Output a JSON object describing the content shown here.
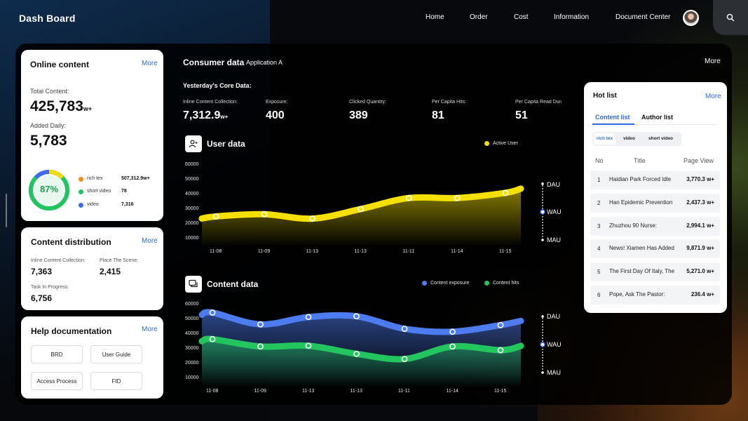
{
  "header": {
    "brand": "Dash Board",
    "nav": [
      "Home",
      "Order",
      "Cost",
      "Information",
      "Document Center"
    ]
  },
  "online_content": {
    "title": "Online content",
    "more": "More",
    "total_label": "Total Content:",
    "total_value": "425,783",
    "total_unit": "w+",
    "daily_label": "Added Daily:",
    "daily_value": "5,783",
    "ring_percent": "87%",
    "ring_fraction": 0.87,
    "legend": [
      {
        "label": "rich tex",
        "value": "507,312.9w+",
        "color": "#f28c1e"
      },
      {
        "label": "short video",
        "value": "78",
        "color": "#22c55e"
      },
      {
        "label": "video",
        "value": "7,316",
        "color": "#3b6cf0"
      }
    ]
  },
  "distribution": {
    "title": "Content distribution",
    "more": "More",
    "items": [
      {
        "label": "Inline Content Collection:",
        "value": "7,363"
      },
      {
        "label": "Place The Scene:",
        "value": "2,415"
      },
      {
        "label": "Task In Progress:",
        "value": "6,756"
      }
    ]
  },
  "help": {
    "title": "Help documentation",
    "more": "More",
    "buttons": [
      "BRD",
      "User Guide",
      "Access Process",
      "FID"
    ]
  },
  "consumer": {
    "title": "Consumer data",
    "app": "Application A",
    "more": "More",
    "core_title": "Yesterday's Core Data:",
    "kpis": [
      {
        "label": "Inline Content Collection:",
        "value": "7,312.9",
        "unit": "w+"
      },
      {
        "label": "Exposure:",
        "value": "400",
        "unit": ""
      },
      {
        "label": "Clicked Quantity:",
        "value": "389",
        "unit": ""
      },
      {
        "label": "Per Capita Hits:",
        "value": "81",
        "unit": ""
      },
      {
        "label": "Per Capita Read Dura",
        "value": "51",
        "unit": ""
      }
    ],
    "scale_labels": [
      "DAU",
      "WAU",
      "MAU"
    ]
  },
  "chart_data": [
    {
      "type": "area",
      "title": "User data",
      "categories": [
        "11-08",
        "11-09",
        "11-13",
        "11-13",
        "11-11",
        "11-14",
        "11-15"
      ],
      "ylim": [
        10000,
        60000
      ],
      "yticks": [
        "60000",
        "50000",
        "40000",
        "30000",
        "20000",
        "10000"
      ],
      "series": [
        {
          "name": "Active User",
          "color": "#f5e000",
          "values": [
            25500,
            27000,
            24000,
            30500,
            38000,
            38000,
            41500
          ]
        }
      ],
      "legend_position": "top-right"
    },
    {
      "type": "area",
      "title": "Content data",
      "categories": [
        "11-08",
        "11-09",
        "11-13",
        "11-13",
        "11-11",
        "11-14",
        "11-15"
      ],
      "ylim": [
        10000,
        60000
      ],
      "yticks": [
        "60000",
        "50000",
        "40000",
        "30000",
        "20000",
        "10000"
      ],
      "series": [
        {
          "name": "Content exposure",
          "color": "#4d7cf0",
          "values": [
            55000,
            47000,
            52000,
            52500,
            44000,
            42000,
            46500
          ]
        },
        {
          "name": "Content hits",
          "color": "#22c55e",
          "values": [
            37000,
            32000,
            32500,
            27000,
            23500,
            32000,
            29500
          ]
        }
      ],
      "legend_position": "top-right"
    }
  ],
  "hotlist": {
    "title": "Hot list",
    "more": "More",
    "tabs": [
      "Content list",
      "Author list"
    ],
    "pills": [
      "rich tex",
      "video",
      "short video"
    ],
    "headers": [
      "No",
      "Title",
      "Page View"
    ],
    "rows": [
      {
        "no": "1",
        "title": "Haidian Park Forced Idle",
        "pv": "3,770.3 w+"
      },
      {
        "no": "2",
        "title": "Han Epidemic Prevention",
        "pv": "2,437.3 w+"
      },
      {
        "no": "3",
        "title": "Zhuzhou 90 Nurse:",
        "pv": "2,994.1 w+"
      },
      {
        "no": "4",
        "title": "News! Xiamen Has Added",
        "pv": "9,871.9 w+"
      },
      {
        "no": "5",
        "title": "The First Day Of Italy, The",
        "pv": "5,271.0 w+"
      },
      {
        "no": "6",
        "title": "Pope, Ask The Pastor:",
        "pv": "236.4 w+"
      }
    ]
  }
}
